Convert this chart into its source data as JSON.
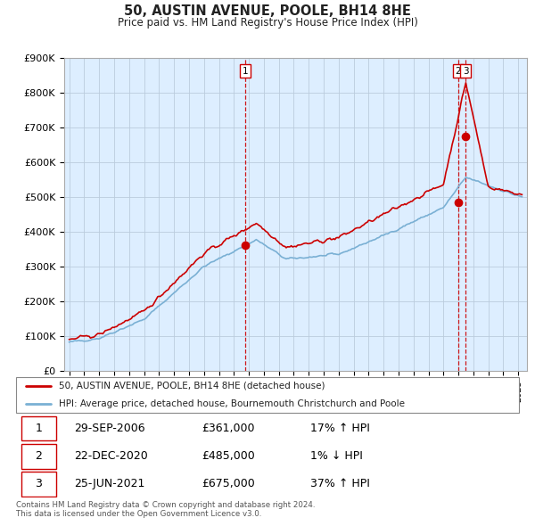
{
  "title": "50, AUSTIN AVENUE, POOLE, BH14 8HE",
  "subtitle": "Price paid vs. HM Land Registry's House Price Index (HPI)",
  "ylim": [
    0,
    900000
  ],
  "yticks": [
    0,
    100000,
    200000,
    300000,
    400000,
    500000,
    600000,
    700000,
    800000,
    900000
  ],
  "ytick_labels": [
    "£0",
    "£100K",
    "£200K",
    "£300K",
    "£400K",
    "£500K",
    "£600K",
    "£700K",
    "£800K",
    "£900K"
  ],
  "hpi_color": "#7ab0d4",
  "price_color": "#cc0000",
  "vline_color": "#cc0000",
  "chart_bg": "#ddeeff",
  "transaction_dates": [
    "2006-09-29",
    "2020-12-22",
    "2021-06-25"
  ],
  "transaction_prices": [
    361000,
    485000,
    675000
  ],
  "transaction_labels": [
    "1",
    "2",
    "3"
  ],
  "legend_labels": [
    "50, AUSTIN AVENUE, POOLE, BH14 8HE (detached house)",
    "HPI: Average price, detached house, Bournemouth Christchurch and Poole"
  ],
  "footer": "Contains HM Land Registry data © Crown copyright and database right 2024.\nThis data is licensed under the Open Government Licence v3.0.",
  "background_color": "#ffffff",
  "grid_color": "#bbccdd",
  "row_entries": [
    [
      "1",
      "29-SEP-2006",
      "£361,000",
      "17% ↑ HPI"
    ],
    [
      "2",
      "22-DEC-2020",
      "£485,000",
      "1% ↓ HPI"
    ],
    [
      "3",
      "25-JUN-2021",
      "£675,000",
      "37% ↑ HPI"
    ]
  ]
}
